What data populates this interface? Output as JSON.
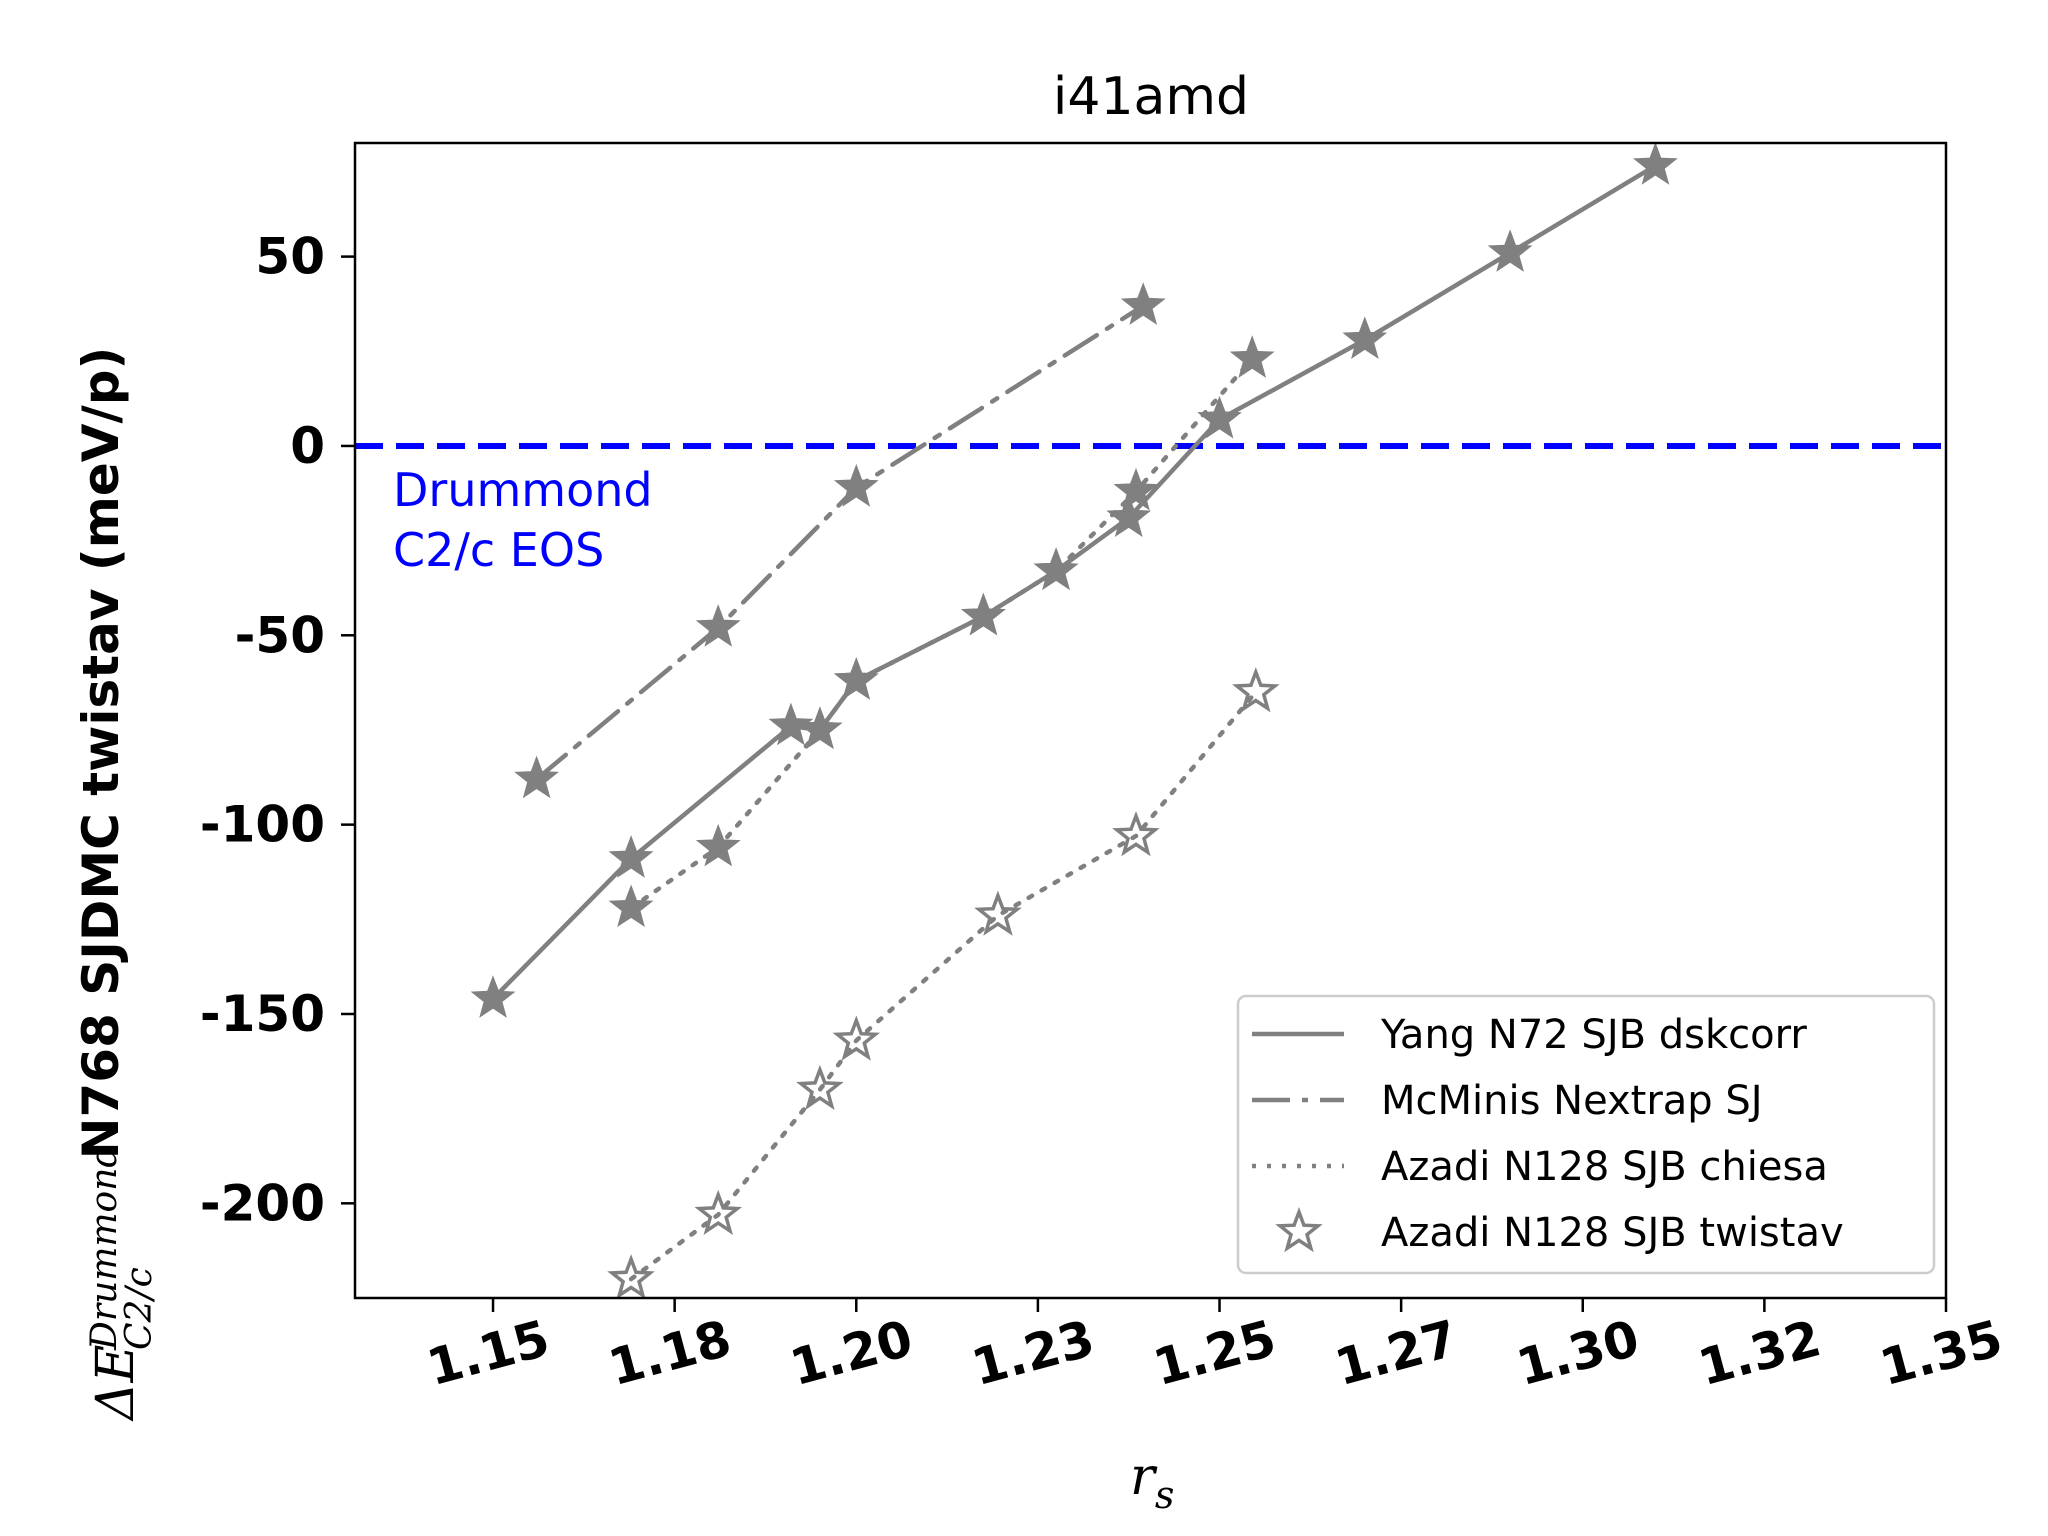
{
  "chart_data": {
    "type": "line",
    "title": "i41amd",
    "xlabel": "r",
    "xlabel_sub": "s",
    "ylabel_main": "N768 SJDMC twistav (meV/p)",
    "ylabel_symbol": "ΔE",
    "ylabel_sup": "Drummond",
    "ylabel_sub": "C2/c",
    "xlim": [
      1.131,
      1.35
    ],
    "ylim": [
      -225,
      80
    ],
    "x_ticks": [
      1.15,
      1.175,
      1.2,
      1.225,
      1.25,
      1.275,
      1.3,
      1.325,
      1.35
    ],
    "x_tick_labels": [
      "1.15",
      "1.18",
      "1.20",
      "1.23",
      "1.25",
      "1.27",
      "1.30",
      "1.32",
      "1.35"
    ],
    "y_ticks": [
      50,
      0,
      -50,
      -100,
      -150,
      -200
    ],
    "y_tick_labels": [
      "50",
      "0",
      "-50",
      "-100",
      "-150",
      "-200"
    ],
    "grid": false,
    "legend_position": "lower-right",
    "reference_line": {
      "y": 0,
      "color": "#0000ff",
      "style": "dashed"
    },
    "annotation": {
      "lines": [
        "Drummond",
        "C2/c EOS"
      ],
      "x": 1.1545,
      "y": -10,
      "color": "#0000ff"
    },
    "series": [
      {
        "name": "Yang N72 SJB dskcorr",
        "style": "solid",
        "marker": "star-filled",
        "color": "#808080",
        "x": [
          1.15,
          1.169,
          1.2,
          1.2175,
          1.191,
          1.195,
          1.2275,
          1.2375,
          1.25,
          1.27,
          1.29,
          1.31
        ],
        "y": [
          -146,
          -109,
          -62,
          -45,
          -74,
          -75,
          -33,
          -19,
          7,
          28,
          51,
          74
        ]
      },
      {
        "name": "McMinis Nextrap SJ",
        "style": "dashdot",
        "marker": "star-filled",
        "color": "#808080",
        "x": [
          1.156,
          1.181,
          1.2,
          1.2395
        ],
        "y": [
          -88,
          -48,
          -11,
          37
        ]
      },
      {
        "name": "Azadi N128 SJB chiesa",
        "style": "dotted",
        "marker": "star-filled",
        "color": "#808080",
        "x": [
          1.169,
          1.181,
          1.195,
          1.2,
          1.2175,
          1.2275,
          1.2385,
          1.2545
        ],
        "y": [
          -122,
          -106,
          -75,
          -62,
          -45,
          -33,
          -12,
          23
        ]
      },
      {
        "name": "Azadi N128 SJB twistav",
        "style": "dotted",
        "marker": "star-open",
        "color": "#808080",
        "x": [
          1.169,
          1.181,
          1.195,
          1.2,
          1.2195,
          1.2385,
          1.255
        ],
        "y": [
          -220,
          -203,
          -170,
          -157,
          -124,
          -103,
          -65
        ]
      }
    ]
  }
}
